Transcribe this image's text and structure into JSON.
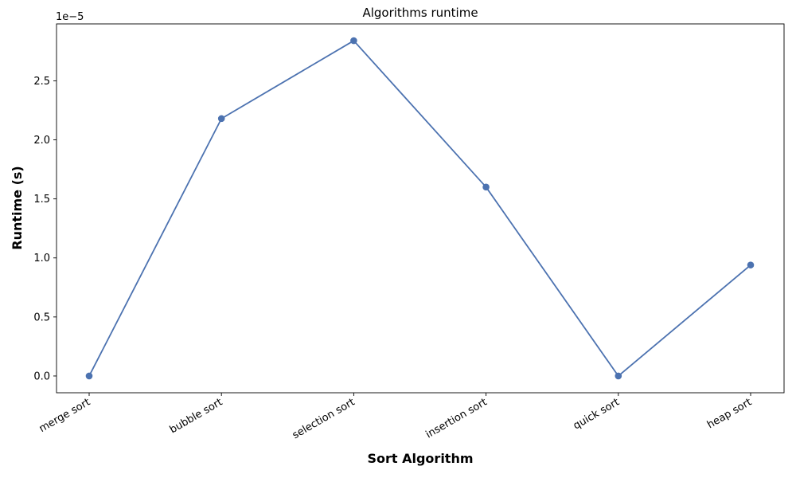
{
  "chart_data": {
    "type": "line",
    "title": "Algorithms  runtime",
    "xlabel": "Sort Algorithm",
    "ylabel": "Runtime (s)",
    "offset_text": "1e−5",
    "categories": [
      "merge sort",
      "bubble sort",
      "selection sort",
      "insertion sort",
      "quick sort",
      "heap sort"
    ],
    "series": [
      {
        "values": [
          0.0,
          2.18e-05,
          2.84e-05,
          1.6e-05,
          0.0,
          9.4e-06
        ]
      }
    ],
    "yticks": [
      0,
      5e-06,
      1e-05,
      1.5e-05,
      2e-05,
      2.5e-05
    ],
    "ytick_labels": [
      "0.0",
      "0.5",
      "1.0",
      "1.5",
      "2.0",
      "2.5"
    ],
    "ylim": [
      -1.42e-06,
      2.982e-05
    ],
    "line_color": "#4c72b0",
    "marker": "circle",
    "grid": false,
    "legend": false
  }
}
